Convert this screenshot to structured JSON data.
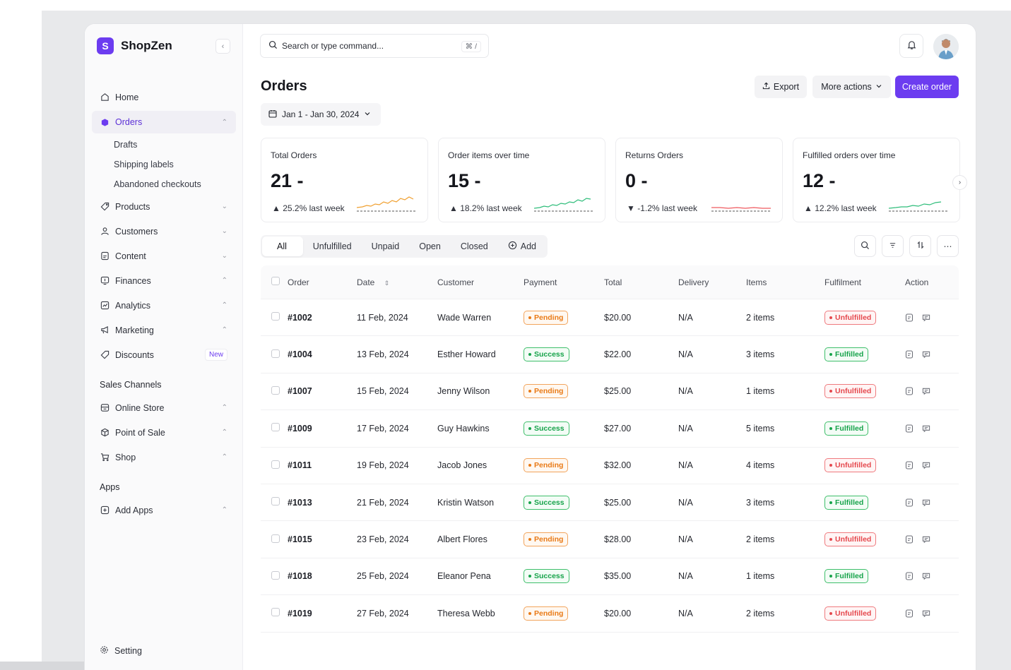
{
  "app": {
    "name": "ShopZen",
    "logo_letter": "S",
    "accent": "#6c3cf0"
  },
  "sidebar": {
    "items": [
      {
        "label": "Home",
        "icon": "home-icon"
      },
      {
        "label": "Orders",
        "icon": "orders-icon",
        "active": true
      },
      {
        "label": "Products",
        "icon": "tag-icon"
      },
      {
        "label": "Customers",
        "icon": "user-icon"
      },
      {
        "label": "Content",
        "icon": "content-icon"
      },
      {
        "label": "Finances",
        "icon": "finance-icon"
      },
      {
        "label": "Analytics",
        "icon": "analytics-icon"
      },
      {
        "label": "Marketing",
        "icon": "megaphone-icon"
      },
      {
        "label": "Discounts",
        "icon": "discount-icon",
        "badge": "New"
      }
    ],
    "orders_sub": [
      "Drafts",
      "Shipping labels",
      "Abandoned checkouts"
    ],
    "sales_channels_label": "Sales Channels",
    "sales_channels": [
      {
        "label": "Online Store",
        "icon": "store-icon"
      },
      {
        "label": "Point of Sale",
        "icon": "box-icon"
      },
      {
        "label": "Shop",
        "icon": "cart-icon"
      }
    ],
    "apps_label": "Apps",
    "apps": [
      {
        "label": "Add Apps",
        "icon": "plus-square-icon"
      }
    ],
    "setting_label": "Setting"
  },
  "search": {
    "placeholder": "Search or type command...",
    "shortcut": "⌘ /"
  },
  "header": {
    "title": "Orders",
    "export_label": "Export",
    "more_label": "More actions",
    "create_label": "Create order",
    "date_range": "Jan 1 - Jan 30, 2024"
  },
  "stats": [
    {
      "title": "Total Orders",
      "value": "21 -",
      "delta": "25.2% last week",
      "trend": "up",
      "color": "#f0a030"
    },
    {
      "title": "Order items over time",
      "value": "15 -",
      "delta": "18.2% last week",
      "trend": "up",
      "color": "#2ebd7a"
    },
    {
      "title": "Returns Orders",
      "value": "0 -",
      "delta": "-1.2% last week",
      "trend": "down",
      "color": "#ef5a5f"
    },
    {
      "title": "Fulfilled orders over time",
      "value": "12 -",
      "delta": "12.2% last week",
      "trend": "up",
      "color": "#2ebd7a"
    }
  ],
  "filters": {
    "tabs": [
      "All",
      "Unfulfilled",
      "Unpaid",
      "Open",
      "Closed"
    ],
    "add_label": "Add",
    "active": "All"
  },
  "table": {
    "columns": [
      "Order",
      "Date",
      "Customer",
      "Payment",
      "Total",
      "Delivery",
      "Items",
      "Fulfilment",
      "Action"
    ],
    "rows": [
      {
        "order": "#1002",
        "date": "11 Feb, 2024",
        "customer": "Wade Warren",
        "payment": "Pending",
        "total": "$20.00",
        "delivery": "N/A",
        "items": "2 items",
        "fulfilment": "Unfulfilled"
      },
      {
        "order": "#1004",
        "date": "13 Feb, 2024",
        "customer": "Esther Howard",
        "payment": "Success",
        "total": "$22.00",
        "delivery": "N/A",
        "items": "3 items",
        "fulfilment": "Fulfilled"
      },
      {
        "order": "#1007",
        "date": "15 Feb, 2024",
        "customer": "Jenny Wilson",
        "payment": "Pending",
        "total": "$25.00",
        "delivery": "N/A",
        "items": "1 items",
        "fulfilment": "Unfulfilled"
      },
      {
        "order": "#1009",
        "date": "17 Feb, 2024",
        "customer": "Guy Hawkins",
        "payment": "Success",
        "total": "$27.00",
        "delivery": "N/A",
        "items": "5 items",
        "fulfilment": "Fulfilled"
      },
      {
        "order": "#1011",
        "date": "19 Feb, 2024",
        "customer": "Jacob Jones",
        "payment": "Pending",
        "total": "$32.00",
        "delivery": "N/A",
        "items": "4 items",
        "fulfilment": "Unfulfilled"
      },
      {
        "order": "#1013",
        "date": "21 Feb, 2024",
        "customer": "Kristin Watson",
        "payment": "Success",
        "total": "$25.00",
        "delivery": "N/A",
        "items": "3 items",
        "fulfilment": "Fulfilled"
      },
      {
        "order": "#1015",
        "date": "23 Feb, 2024",
        "customer": "Albert Flores",
        "payment": "Pending",
        "total": "$28.00",
        "delivery": "N/A",
        "items": "2 items",
        "fulfilment": "Unfulfilled"
      },
      {
        "order": "#1018",
        "date": "25 Feb, 2024",
        "customer": "Eleanor Pena",
        "payment": "Success",
        "total": "$35.00",
        "delivery": "N/A",
        "items": "1 items",
        "fulfilment": "Fulfilled"
      },
      {
        "order": "#1019",
        "date": "27 Feb, 2024",
        "customer": "Theresa Webb",
        "payment": "Pending",
        "total": "$20.00",
        "delivery": "N/A",
        "items": "2 items",
        "fulfilment": "Unfulfilled"
      }
    ]
  }
}
